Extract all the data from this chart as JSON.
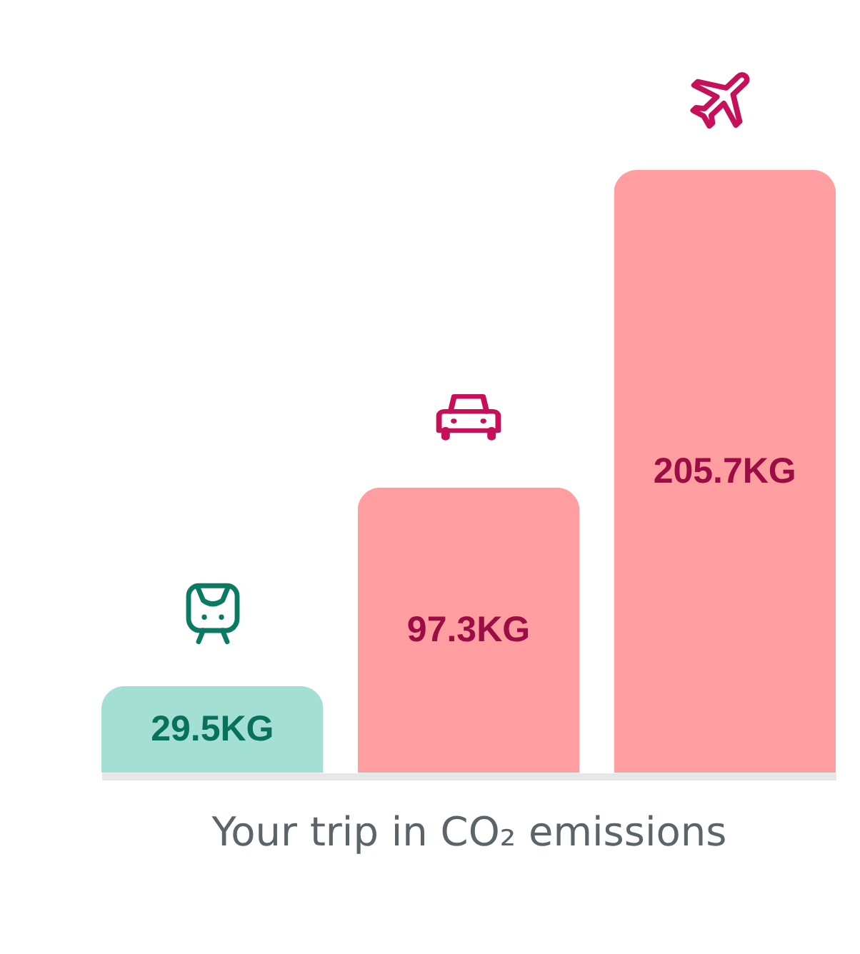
{
  "chart_data": {
    "type": "bar",
    "categories": [
      null,
      null,
      null
    ],
    "values": [
      29.5,
      97.3,
      205.7
    ],
    "colors": [
      "#a3e0d3",
      "#ff9ea1",
      "#ff9ea1"
    ],
    "value_labels": [
      "29.5KG",
      "97.3KG",
      "205.7KG"
    ],
    "xlabel": "Your trip in CO₂ emissions"
  }
}
